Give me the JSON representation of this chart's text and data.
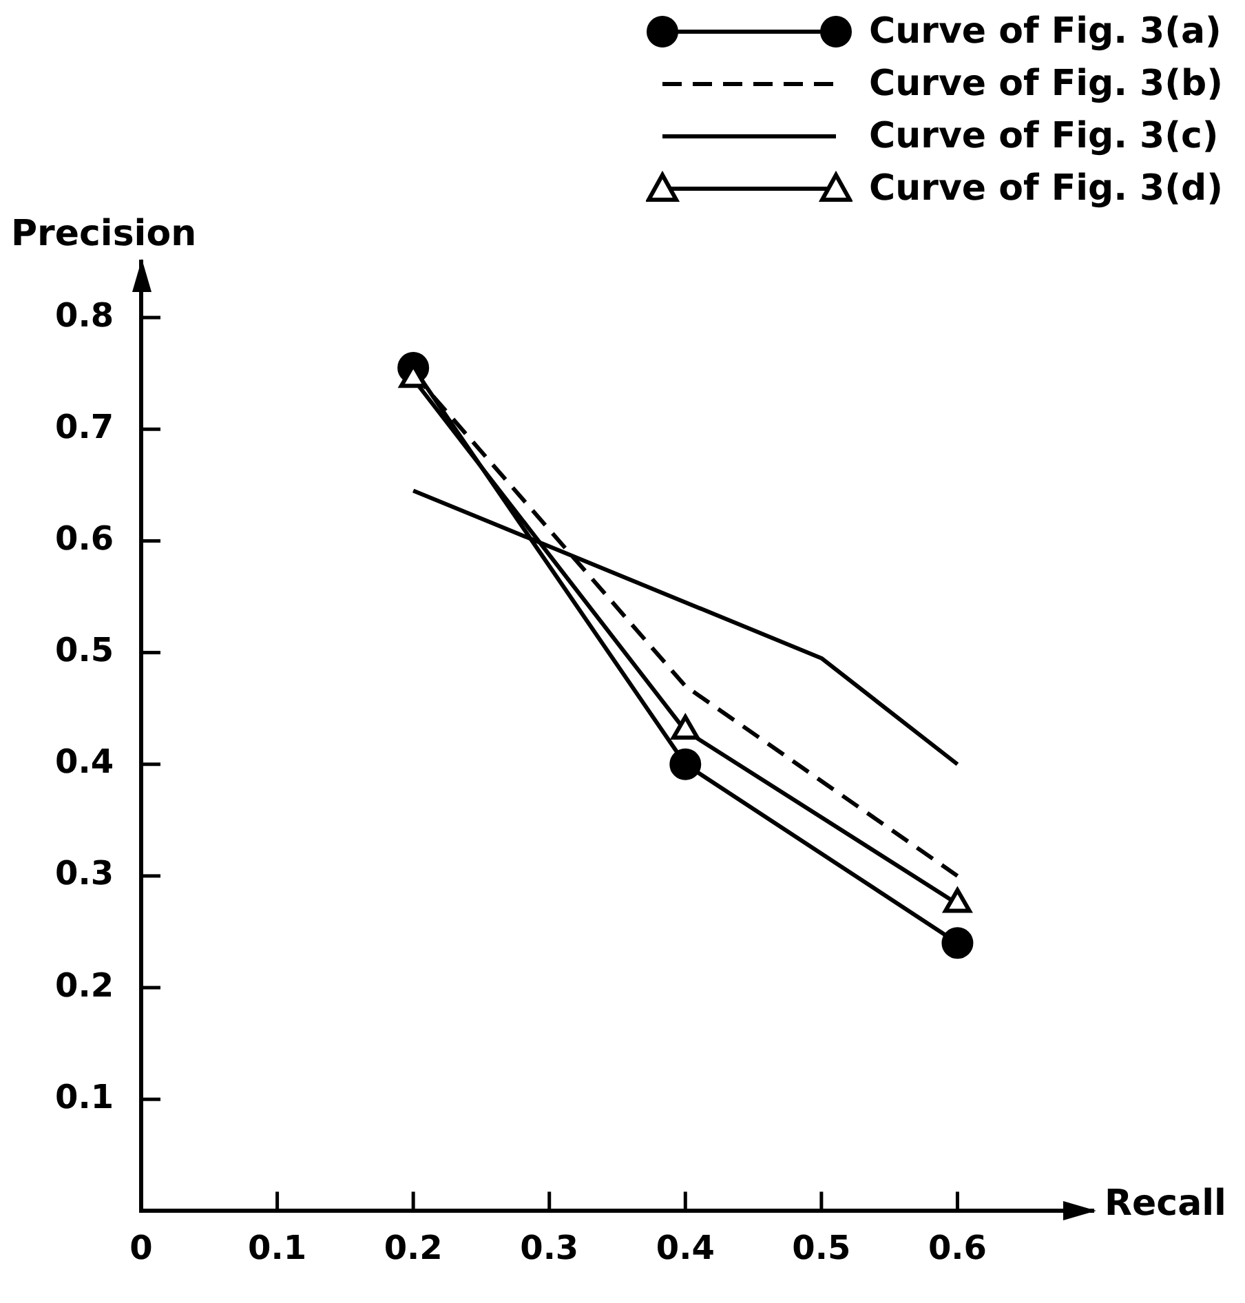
{
  "chart_data": {
    "type": "line",
    "xlabel": "Recall",
    "ylabel": "Precision",
    "xlim": [
      0,
      0.7
    ],
    "ylim": [
      0,
      0.85
    ],
    "xticks": [
      0,
      0.1,
      0.2,
      0.3,
      0.4,
      0.5,
      0.6
    ],
    "yticks": [
      0.1,
      0.2,
      0.3,
      0.4,
      0.5,
      0.6,
      0.7,
      0.8
    ],
    "grid": false,
    "legend": "top right",
    "series": [
      {
        "name": "Curve of Fig. 3(a)",
        "color": "#000000",
        "x": [
          0.2,
          0.4,
          0.6
        ],
        "values": [
          0.755,
          0.4,
          0.24
        ],
        "marker": "circle",
        "line_style": "solid"
      },
      {
        "name": "Curve of Fig. 3(b)",
        "color": "#000000",
        "x": [
          0.2,
          0.4,
          0.6
        ],
        "values": [
          0.75,
          0.47,
          0.3
        ],
        "marker": "none",
        "line_style": "dashed"
      },
      {
        "name": "Curve of Fig. 3(c)",
        "color": "#000000",
        "x": [
          0.2,
          0.5,
          0.6
        ],
        "values": [
          0.645,
          0.495,
          0.4
        ],
        "marker": "none",
        "line_style": "solid"
      },
      {
        "name": "Curve of Fig. 3(d)",
        "color": "#000000",
        "x": [
          0.2,
          0.4,
          0.6
        ],
        "values": [
          0.745,
          0.43,
          0.275
        ],
        "marker": "triangle",
        "line_style": "solid"
      }
    ]
  }
}
